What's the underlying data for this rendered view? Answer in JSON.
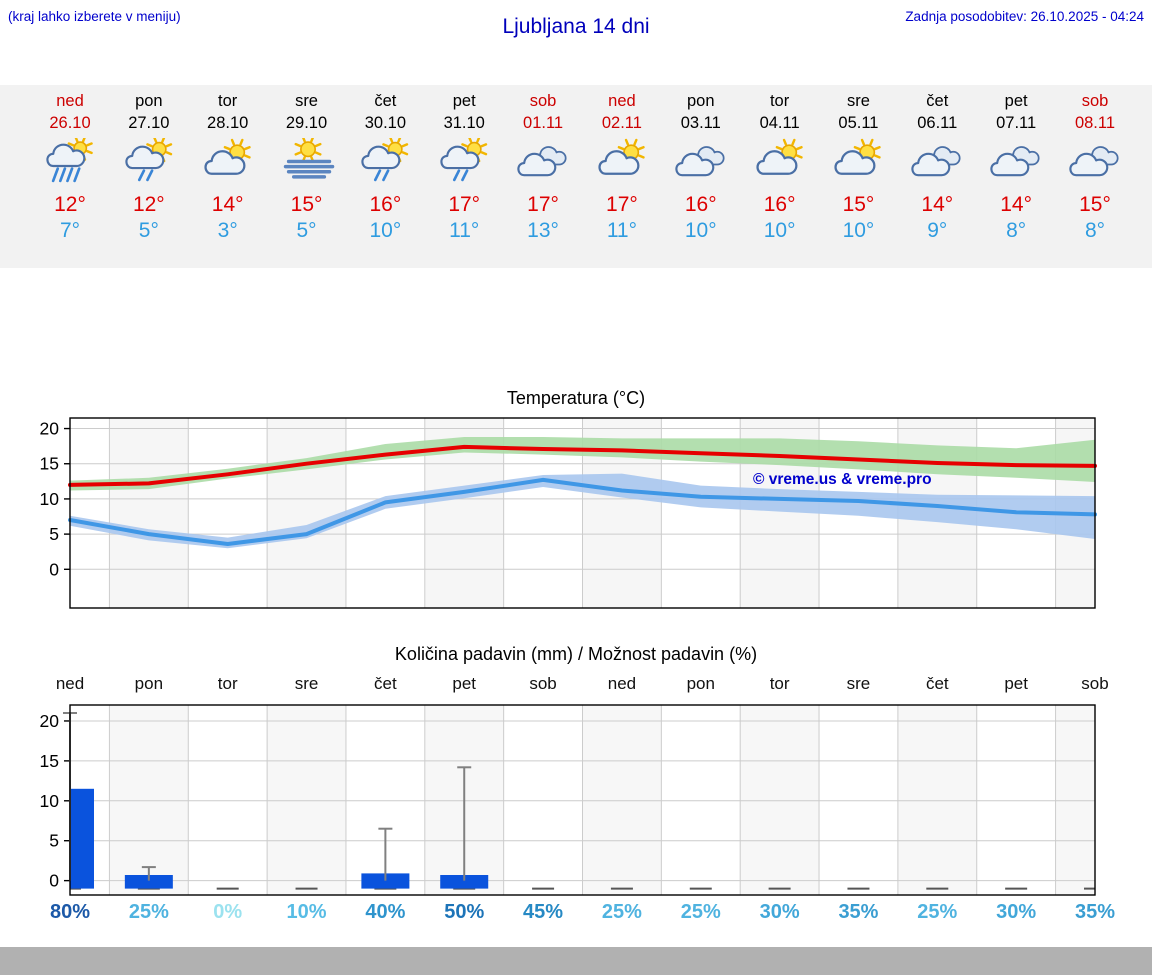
{
  "header": {
    "hint": "(kraj lahko izberete v meniju)",
    "title": "Ljubljana 14 dni",
    "updated": "Zadnja posodobitev: 26.10.2025 - 04:24"
  },
  "colors": {
    "link_blue": "#0000cc",
    "weekend_red": "#cc0000",
    "tmax_red": "#dd0000",
    "tmin_blue": "#2f9ce0",
    "strip_bg": "#f2f2f2",
    "footer_gray": "#b1b1b1",
    "bar_blue": "#0a53dd",
    "band_green": "#abdca6",
    "band_blue": "#a9c6ee",
    "line_red": "#e60000",
    "line_blue": "#3f97e6",
    "watermark_blue": "#0000cc",
    "whisker_gray": "#808080"
  },
  "days": [
    {
      "name": "ned",
      "date": "26.10",
      "weekend": true,
      "icon": "sun-cloud-rain",
      "tmax": "12°",
      "tmin": "7°"
    },
    {
      "name": "pon",
      "date": "27.10",
      "weekend": false,
      "icon": "sun-cloud-showers",
      "tmax": "12°",
      "tmin": "5°"
    },
    {
      "name": "tor",
      "date": "28.10",
      "weekend": false,
      "icon": "sun-cloud",
      "tmax": "14°",
      "tmin": "3°"
    },
    {
      "name": "sre",
      "date": "29.10",
      "weekend": false,
      "icon": "fog",
      "tmax": "15°",
      "tmin": "5°"
    },
    {
      "name": "čet",
      "date": "30.10",
      "weekend": false,
      "icon": "sun-cloud-showers",
      "tmax": "16°",
      "tmin": "10°"
    },
    {
      "name": "pet",
      "date": "31.10",
      "weekend": false,
      "icon": "sun-cloud-showers",
      "tmax": "17°",
      "tmin": "11°"
    },
    {
      "name": "sob",
      "date": "01.11",
      "weekend": true,
      "icon": "cloudy",
      "tmax": "17°",
      "tmin": "13°"
    },
    {
      "name": "ned",
      "date": "02.11",
      "weekend": true,
      "icon": "sun-cloud",
      "tmax": "17°",
      "tmin": "11°"
    },
    {
      "name": "pon",
      "date": "03.11",
      "weekend": false,
      "icon": "cloudy",
      "tmax": "16°",
      "tmin": "10°"
    },
    {
      "name": "tor",
      "date": "04.11",
      "weekend": false,
      "icon": "sun-cloud",
      "tmax": "16°",
      "tmin": "10°"
    },
    {
      "name": "sre",
      "date": "05.11",
      "weekend": false,
      "icon": "sun-cloud",
      "tmax": "15°",
      "tmin": "10°"
    },
    {
      "name": "čet",
      "date": "06.11",
      "weekend": false,
      "icon": "cloudy",
      "tmax": "14°",
      "tmin": "9°"
    },
    {
      "name": "pet",
      "date": "07.11",
      "weekend": false,
      "icon": "cloudy",
      "tmax": "14°",
      "tmin": "8°"
    },
    {
      "name": "sob",
      "date": "08.11",
      "weekend": true,
      "icon": "cloudy",
      "tmax": "15°",
      "tmin": "8°"
    }
  ],
  "chart_data": [
    {
      "type": "line",
      "title": "Temperatura (°C)",
      "x_labels": [
        "26.10",
        "27.10",
        "28.10",
        "29.10",
        "30.10",
        "31.10",
        "01.11",
        "02.11",
        "03.11",
        "04.11",
        "05.11",
        "06.11",
        "07.11",
        "08.11"
      ],
      "ylim": [
        -5.5,
        21.5
      ],
      "yticks": [
        0,
        5,
        10,
        15,
        20
      ],
      "grid": true,
      "legend": "none",
      "watermark": "© vreme.us & vreme.pro",
      "series": [
        {
          "name": "max_temp",
          "color": "#e60000",
          "values": [
            12.0,
            12.2,
            13.5,
            15.0,
            16.3,
            17.4,
            17.1,
            16.9,
            16.5,
            16.1,
            15.6,
            15.1,
            14.8,
            14.7
          ]
        },
        {
          "name": "min_temp",
          "color": "#3f97e6",
          "values": [
            7.0,
            5.0,
            3.6,
            5.0,
            9.5,
            11.0,
            12.7,
            11.2,
            10.3,
            10.0,
            9.7,
            9.0,
            8.1,
            7.8
          ]
        },
        {
          "name": "max_band_upper",
          "color": "#abdca6",
          "values": [
            12.6,
            13.0,
            14.3,
            15.8,
            17.8,
            18.8,
            18.8,
            18.6,
            18.6,
            18.6,
            18.2,
            17.6,
            17.2,
            18.4
          ]
        },
        {
          "name": "max_band_lower",
          "color": "#abdca6",
          "values": [
            11.2,
            11.4,
            12.9,
            14.2,
            15.6,
            16.6,
            16.3,
            15.9,
            15.3,
            14.8,
            14.2,
            13.5,
            13.0,
            12.4
          ]
        },
        {
          "name": "min_band_upper",
          "color": "#a9c6ee",
          "values": [
            7.6,
            5.7,
            4.5,
            6.3,
            10.4,
            11.9,
            13.4,
            13.6,
            11.9,
            11.4,
            11.0,
            10.6,
            10.5,
            10.4
          ]
        },
        {
          "name": "min_band_lower",
          "color": "#a9c6ee",
          "values": [
            6.2,
            4.1,
            3.0,
            4.4,
            8.6,
            10.1,
            11.7,
            10.2,
            8.8,
            8.2,
            7.6,
            6.7,
            5.7,
            4.3
          ]
        }
      ]
    },
    {
      "type": "bar",
      "title": "Količina padavin (mm) / Možnost padavin (%)",
      "categories": [
        "ned",
        "pon",
        "tor",
        "sre",
        "čet",
        "pet",
        "sob",
        "ned",
        "pon",
        "tor",
        "sre",
        "čet",
        "pet",
        "sob"
      ],
      "values": [
        11.5,
        0.7,
        0,
        0,
        0.9,
        0.7,
        0,
        0,
        0,
        0,
        0,
        0,
        0,
        0
      ],
      "whisker_max": [
        21,
        1.7,
        0,
        0,
        6.5,
        14.2,
        0,
        0,
        0,
        0,
        0,
        0,
        0,
        0
      ],
      "probabilities": [
        "80%",
        "25%",
        "0%",
        "10%",
        "40%",
        "50%",
        "45%",
        "25%",
        "25%",
        "30%",
        "35%",
        "25%",
        "30%",
        "35%"
      ],
      "prob_colors": [
        "#1c59a8",
        "#4fb3e0",
        "#9be2ef",
        "#57bce5",
        "#2e94cd",
        "#1d74b8",
        "#2689c4",
        "#4fb3e0",
        "#4fb3e0",
        "#42a7d9",
        "#3a9ed2",
        "#4fb3e0",
        "#42a7d9",
        "#3a9ed2"
      ],
      "ylim": [
        -1.8,
        22
      ],
      "yticks": [
        0,
        5,
        10,
        15,
        20
      ],
      "xlabel": "",
      "ylabel": ""
    }
  ]
}
